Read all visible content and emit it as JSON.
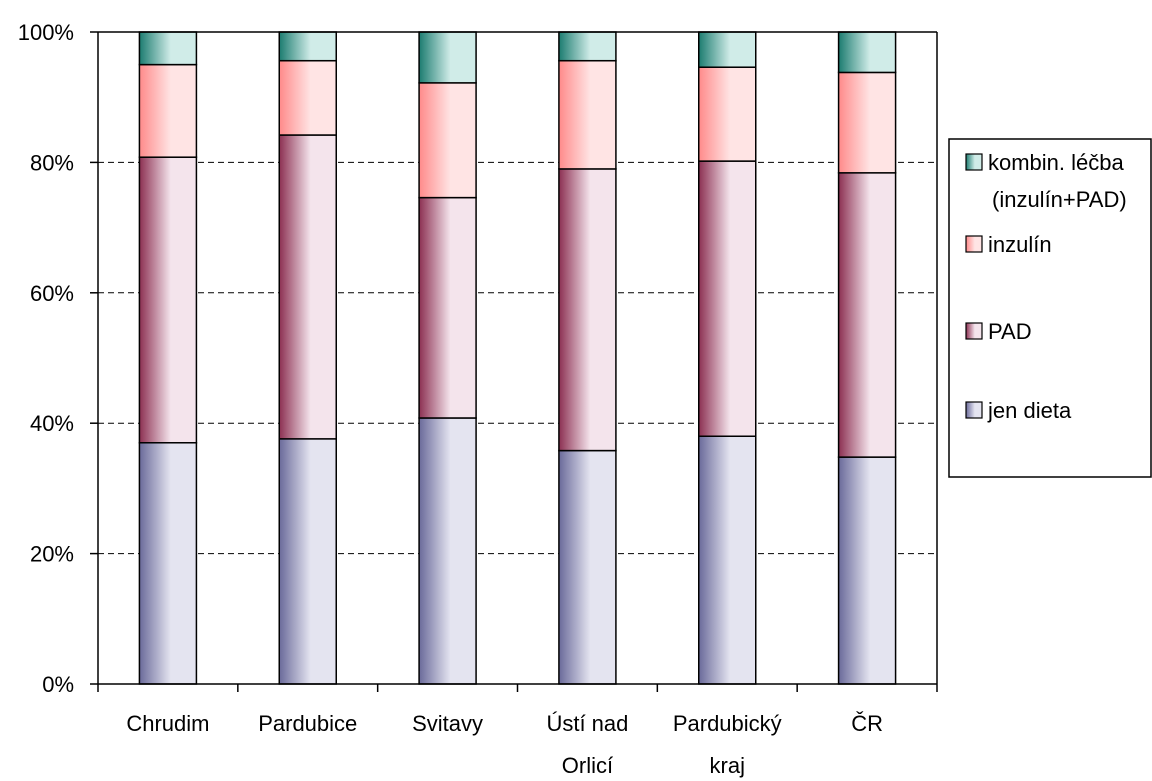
{
  "chart_data": {
    "type": "bar",
    "stacked": true,
    "percent": true,
    "categories": [
      [
        "Chrudim"
      ],
      [
        "Pardubice"
      ],
      [
        "Svitavy"
      ],
      [
        "Ústí nad",
        "Orlicí"
      ],
      [
        "Pardubický",
        "kraj"
      ],
      [
        "ČR"
      ]
    ],
    "series": [
      {
        "name": "jen dieta",
        "values": [
          37.0,
          37.6,
          40.8,
          35.8,
          38.0,
          34.8
        ],
        "color_dark": "#6a6a9a",
        "color_light": "#e4e4f0"
      },
      {
        "name": "PAD",
        "values": [
          43.8,
          46.6,
          33.8,
          43.2,
          42.2,
          43.6
        ],
        "color_dark": "#8c3052",
        "color_light": "#f4e4ec"
      },
      {
        "name": "inzulín",
        "values": [
          14.2,
          11.4,
          17.6,
          16.6,
          14.4,
          15.4
        ],
        "color_dark": "#ff8a8a",
        "color_light": "#ffe4e4"
      },
      {
        "name": "kombin. léčba (inzulín+PAD)",
        "values": [
          5.0,
          4.4,
          7.8,
          4.4,
          5.4,
          6.2
        ],
        "color_dark": "#1c7c70",
        "color_light": "#d0ece8"
      }
    ],
    "y_ticks": [
      "0%",
      "20%",
      "40%",
      "60%",
      "80%",
      "100%"
    ],
    "ylim": [
      0,
      100
    ],
    "grid": "horizontal dashed",
    "legend_position": "right",
    "legend_lines": [
      [
        "kombin. léčba",
        "(inzulín+PAD)"
      ],
      [
        "inzulín"
      ],
      [
        "PAD"
      ],
      [
        "jen dieta"
      ]
    ]
  }
}
